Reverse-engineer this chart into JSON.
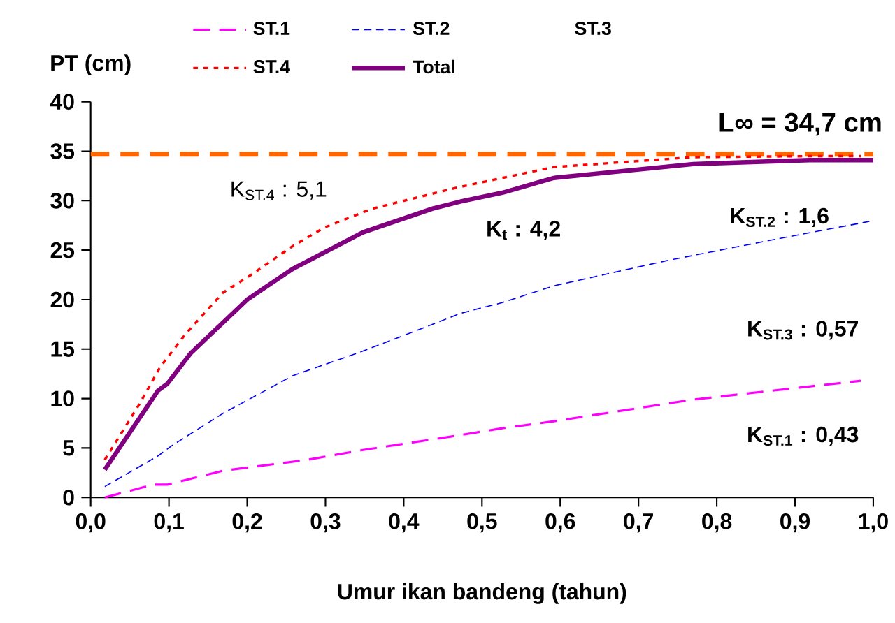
{
  "chart_data": {
    "type": "line",
    "xlabel": "Umur ikan bandeng (tahun)",
    "ylabel": "PT (cm)",
    "xlim": [
      0,
      1
    ],
    "ylim": [
      0,
      40
    ],
    "xticks": [
      {
        "value": 0,
        "label": "0,0"
      },
      {
        "value": 0.1,
        "label": "0,1"
      },
      {
        "value": 0.2,
        "label": "0,2"
      },
      {
        "value": 0.3,
        "label": "0,3"
      },
      {
        "value": 0.4,
        "label": "0,4"
      },
      {
        "value": 0.5,
        "label": "0,5"
      },
      {
        "value": 0.6,
        "label": "0,6"
      },
      {
        "value": 0.7,
        "label": "0,7"
      },
      {
        "value": 0.8,
        "label": "0,8"
      },
      {
        "value": 0.9,
        "label": "0,9"
      },
      {
        "value": 1.0,
        "label": "1,0"
      }
    ],
    "yticks": [
      0,
      5,
      10,
      15,
      20,
      25,
      30,
      35,
      40
    ],
    "legend": "top",
    "grid": false,
    "series": [
      {
        "name": "ST.1",
        "color": "#ff00ff",
        "line_style": "dashed",
        "x": [
          0.018,
          0.08,
          0.098,
          0.169,
          0.276,
          0.348,
          0.472,
          0.526,
          0.592,
          0.77,
          0.984
        ],
        "values": [
          0,
          1.3,
          1.3,
          2.7,
          3.8,
          4.8,
          6.3,
          7.0,
          7.7,
          9.9,
          11.8
        ]
      },
      {
        "name": "ST.2",
        "color": "#0000ff",
        "line_style": "dashed",
        "x": [
          0.018,
          0.086,
          0.103,
          0.169,
          0.258,
          0.348,
          0.437,
          0.472,
          0.526,
          0.592,
          0.74,
          0.888,
          0.995
        ],
        "values": [
          1.1,
          4.2,
          5.2,
          8.5,
          12.3,
          14.8,
          17.5,
          18.6,
          19.7,
          21.4,
          24.0,
          26.3,
          27.9
        ]
      },
      {
        "name": "ST.3"
      },
      {
        "name": "ST.4",
        "color": "#ff0000",
        "line_style": "dotted",
        "x": [
          0.018,
          0.062,
          0.089,
          0.121,
          0.169,
          0.205,
          0.258,
          0.299,
          0.36,
          0.467,
          0.526,
          0.592,
          0.77,
          0.918,
          0.984
        ],
        "values": [
          3.8,
          9.4,
          13.2,
          16.5,
          20.7,
          22.5,
          25.4,
          27.3,
          29.2,
          31.3,
          32.3,
          33.4,
          34.4,
          34.5,
          34.5
        ]
      },
      {
        "name": "Total",
        "color": "#800080",
        "line_style": "solid",
        "x": [
          0.018,
          0.086,
          0.098,
          0.128,
          0.2,
          0.258,
          0.348,
          0.437,
          0.472,
          0.526,
          0.592,
          0.77,
          0.918,
          1.0
        ],
        "values": [
          2.8,
          10.8,
          11.5,
          14.6,
          20.0,
          23.1,
          26.8,
          29.2,
          29.9,
          30.8,
          32.3,
          33.7,
          34.1,
          34.1
        ]
      }
    ],
    "ref_lines": [
      {
        "axis": "y",
        "value": 34.7,
        "label": "L∞ = 34,7 cm",
        "color": "#ff6600",
        "line_style": "dashed"
      }
    ],
    "annotations": [
      "K$_{ST.4}$ : 5,1",
      "K$_{t}$ : 4,2",
      "K$_{ST.2}$ : 1,6",
      "K$_{ST.3}$ : 0,57",
      "K$_{ST.1}$ : 0,43"
    ]
  }
}
